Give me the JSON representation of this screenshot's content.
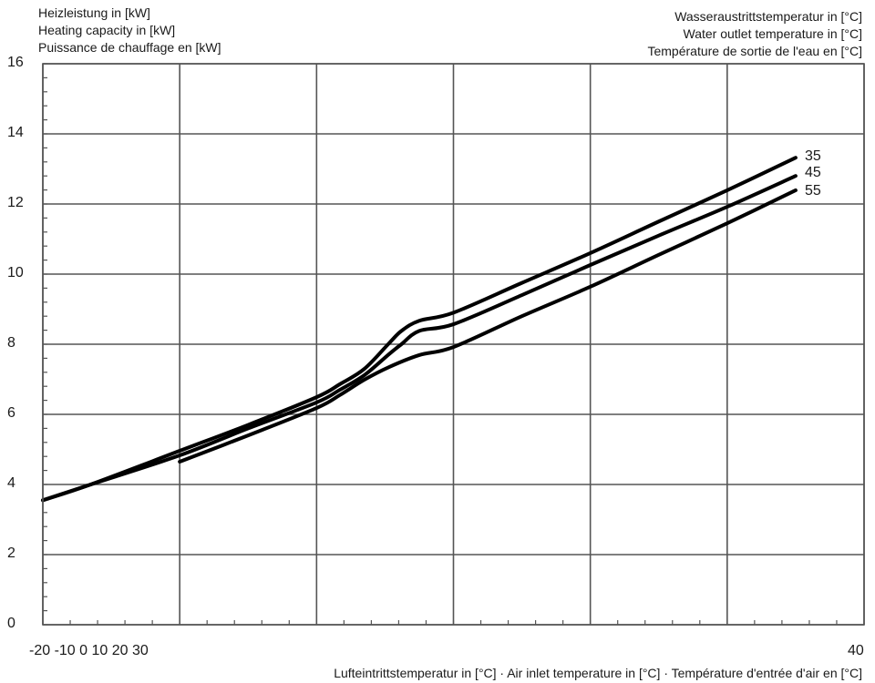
{
  "y_axis_title": {
    "line1": "Heizleistung in [kW]",
    "line2": "Heating capacity in [kW]",
    "line3": "Puissance de chauffage en [kW]"
  },
  "legend_title": {
    "line1": "Wasseraustrittstemperatur in [°C]",
    "line2": "Water outlet temperature in [°C]",
    "line3": "Température de sortie de l'eau en [°C]"
  },
  "x_axis_title": "Lufteintrittstemperatur in [°C] · Air inlet temperature in [°C] · Température d'entrée d'air en [°C]",
  "x_tick_labels_left": "-20 -10 0 10 20 30",
  "x_tick_label_right": "40",
  "y_tick_labels": [
    "0",
    "2",
    "4",
    "6",
    "8",
    "10",
    "12",
    "14",
    "16"
  ],
  "series_labels": [
    "35",
    "45",
    "55"
  ],
  "colors": {
    "line": "#000000",
    "grid": "#555555",
    "background": "#ffffff"
  },
  "chart_data": {
    "type": "line",
    "title": "",
    "xlabel": "Lufteintrittstemperatur in [°C] · Air inlet temperature in [°C] · Température d'entrée d'air en [°C]",
    "ylabel": "Heizleistung in [kW] / Heating capacity in [kW] / Puissance de chauffage en [kW]",
    "legend_title": "Wasseraustrittstemperatur in [°C] / Water outlet temperature in [°C] / Température de sortie de l'eau en [°C]",
    "legend_position": "inline-right-end",
    "xlim": [
      -20,
      40
    ],
    "ylim": [
      0,
      16
    ],
    "x_ticks": [
      -20,
      -10,
      0,
      10,
      20,
      30,
      40
    ],
    "y_ticks": [
      0,
      2,
      4,
      6,
      8,
      10,
      12,
      14,
      16
    ],
    "y_minor_step": 0.4,
    "x_minor_step": 2,
    "grid": true,
    "series": [
      {
        "name": "35",
        "x": [
          -20,
          -16.5,
          -10,
          -5,
          0,
          1.7,
          3.5,
          5.3,
          6.2,
          7.5,
          10,
          15,
          20,
          25,
          30,
          35
        ],
        "y": [
          3.55,
          4.0,
          4.96,
          5.7,
          6.49,
          6.86,
          7.3,
          8.03,
          8.38,
          8.67,
          8.9,
          9.75,
          10.6,
          11.5,
          12.39,
          13.32
        ]
      },
      {
        "name": "45",
        "x": [
          -20,
          -16.5,
          -10,
          -5,
          0,
          1.7,
          3.5,
          5.3,
          6.2,
          7.5,
          10,
          15,
          20,
          25,
          30,
          35
        ],
        "y": [
          3.55,
          4.0,
          4.83,
          5.6,
          6.34,
          6.7,
          7.12,
          7.72,
          8.0,
          8.38,
          8.57,
          9.4,
          10.26,
          11.1,
          11.92,
          12.8
        ]
      },
      {
        "name": "55",
        "x": [
          -10,
          -5,
          0,
          1.7,
          3.5,
          5.3,
          7.5,
          10,
          15,
          20,
          25,
          30,
          35
        ],
        "y": [
          4.65,
          5.4,
          6.18,
          6.55,
          6.99,
          7.35,
          7.69,
          7.92,
          8.8,
          9.64,
          10.55,
          11.45,
          12.39
        ]
      }
    ]
  }
}
